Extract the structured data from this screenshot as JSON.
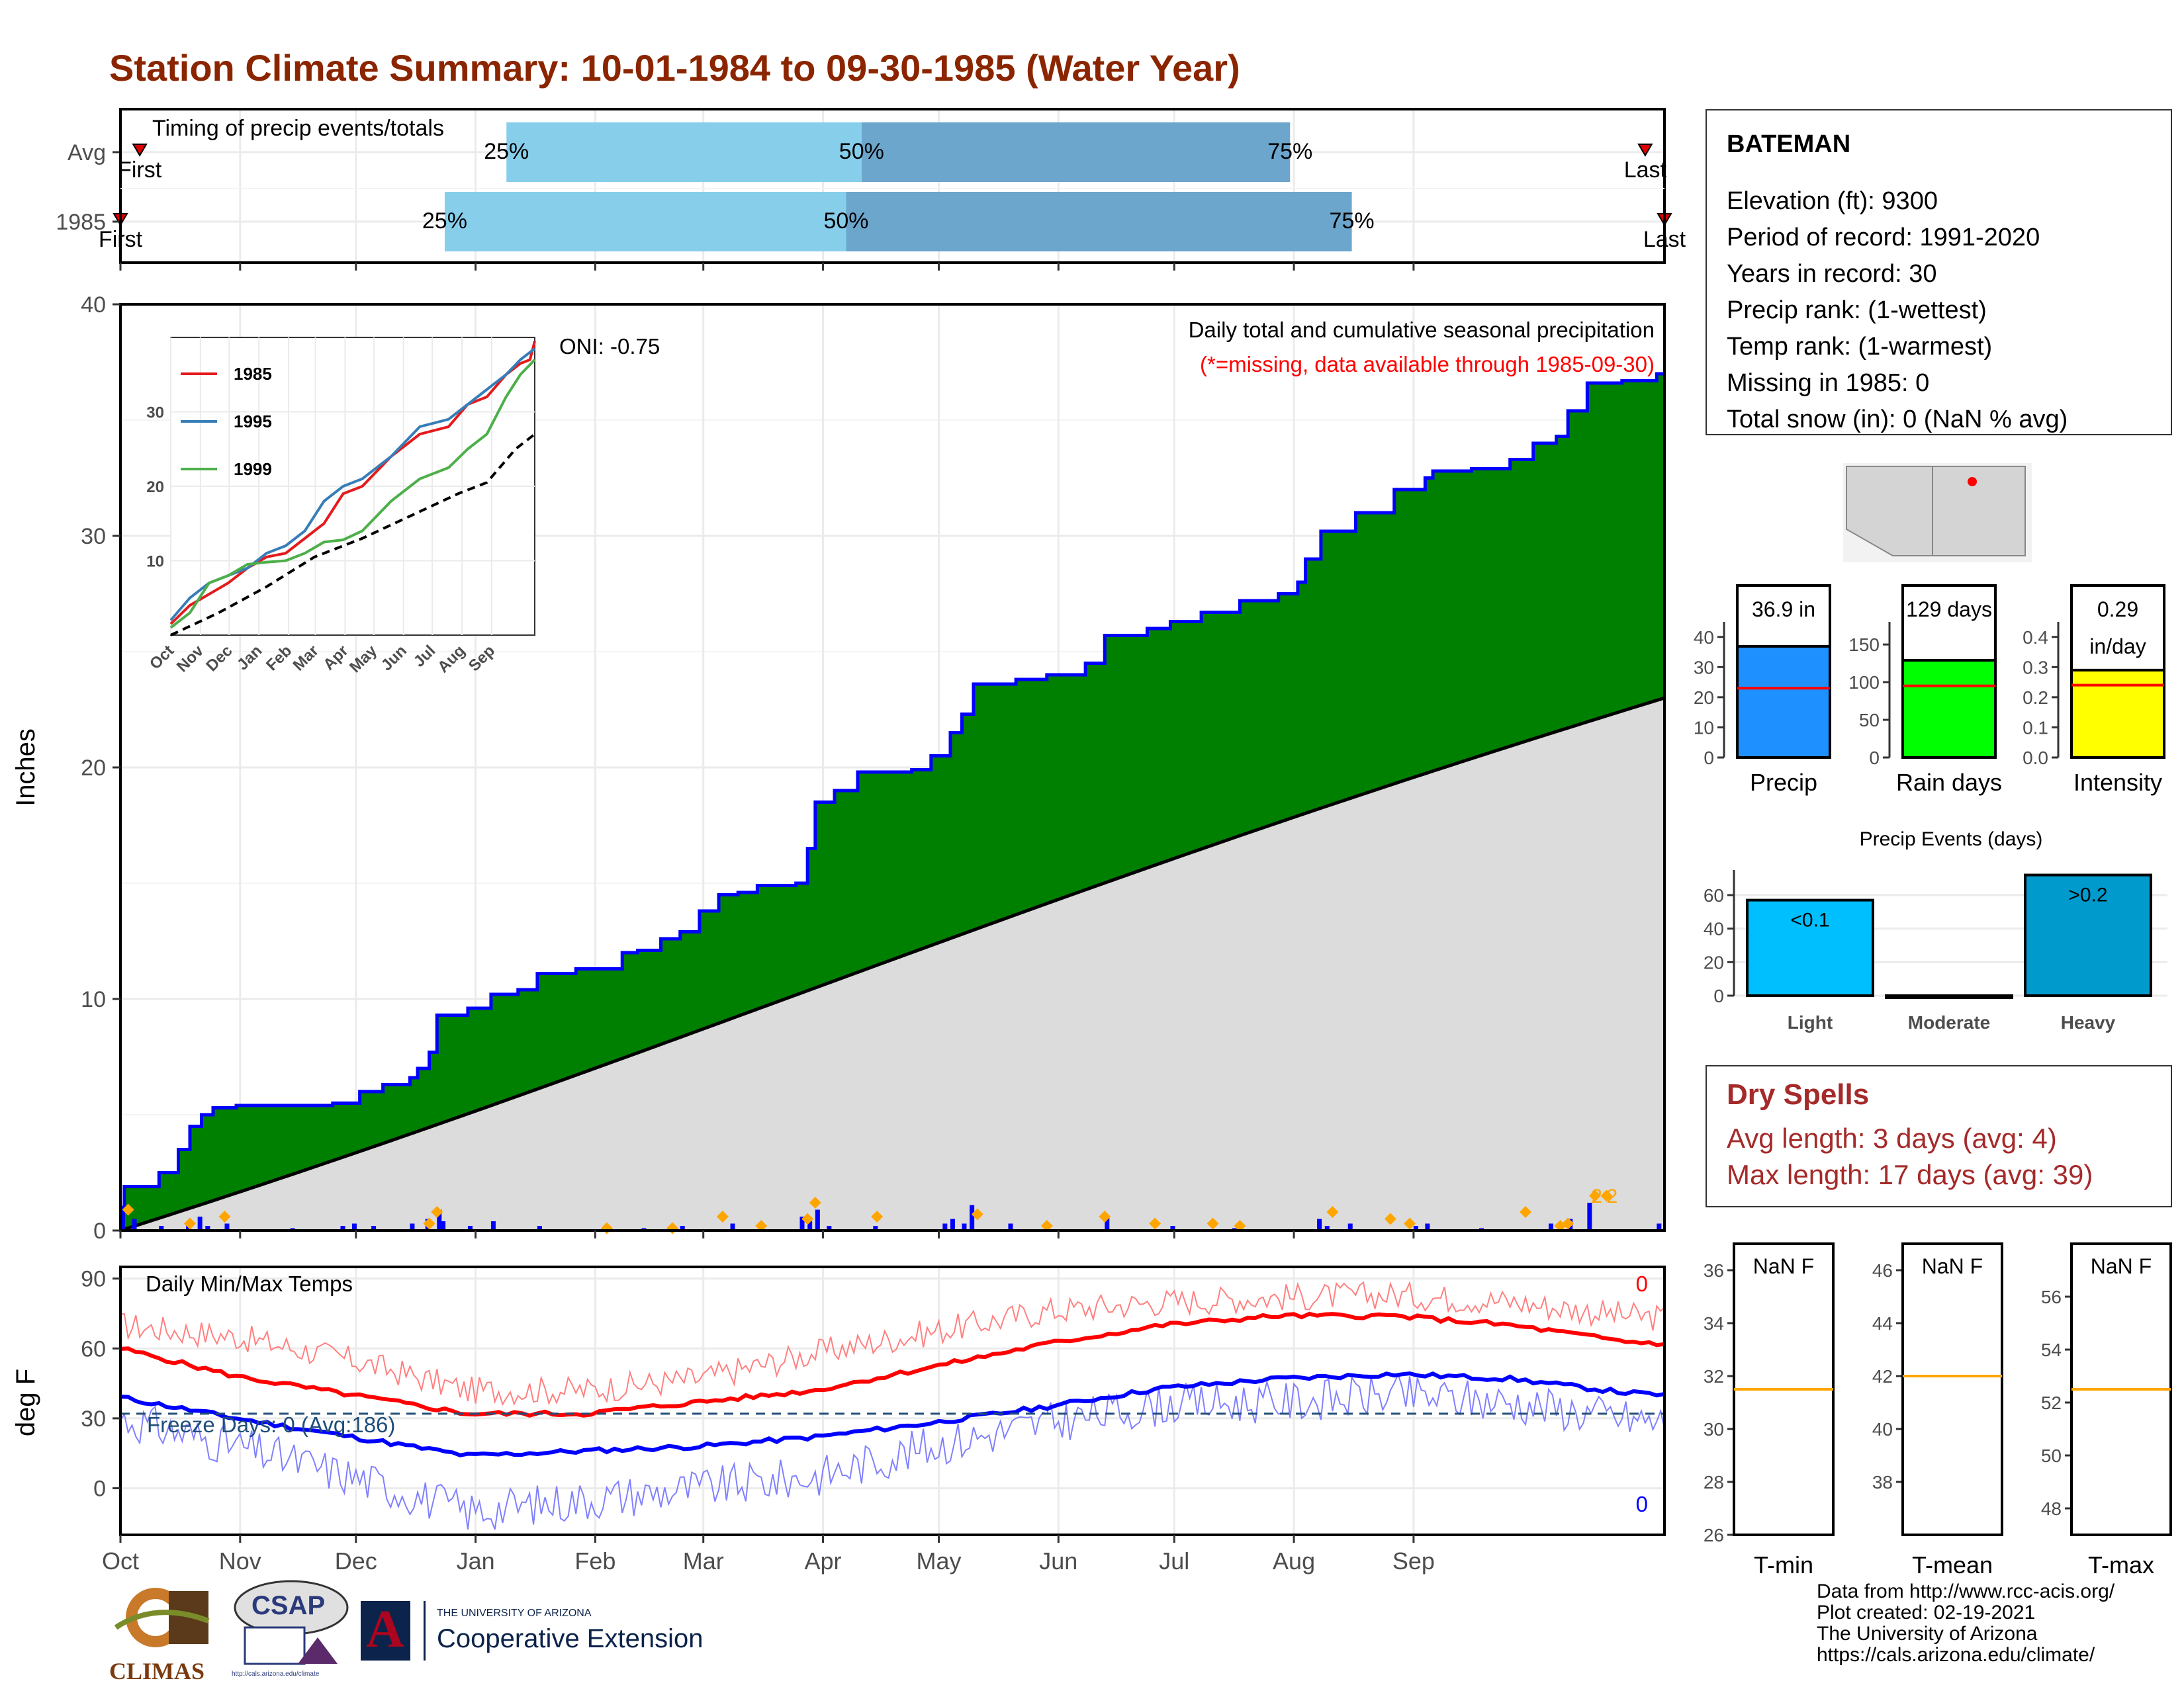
{
  "title": "Station Climate Summary: 10-01-1984 to 09-30-1985 (Water Year)",
  "station": {
    "name": "BATEMAN",
    "lines": [
      "Elevation (ft): 9300",
      "Period of record: 1991-2020",
      "Years in record: 30",
      "Precip rank:  (1-wettest)",
      "Temp rank:  (1-warmest)",
      "Missing in 1985: 0",
      "Total snow (in): 0 (NaN % avg)"
    ]
  },
  "dry_spells": {
    "title": "Dry Spells",
    "avg": "Avg length: 3 days (avg: 4)",
    "max": "Max length: 17 days (avg: 39)"
  },
  "footer": {
    "lines": [
      "Data from http://www.rcc-acis.org/",
      "Plot created: 02-19-2021",
      "The University of Arizona",
      "https://cals.arizona.edu/climate/"
    ],
    "logos": {
      "climas": "CLIMAS",
      "csap": "CSAP",
      "csap_url": "http://cals.arizona.edu/climate",
      "ua_small": "THE UNIVERSITY OF ARIZONA",
      "ua_big": "Cooperative Extension",
      "ua_letter": "A"
    }
  },
  "colors": {
    "title": "#8b2500",
    "cum_fill": "#008000",
    "cum_line": "#0000ff",
    "avg_fill": "#dcdcdc",
    "bar_light_blue": "#87ceeb",
    "bar_dark_blue": "#6ca6cd",
    "tmax": "#ff0000",
    "tmin": "#0000ff",
    "orange": "#ffa500",
    "precip_bar": "#1e90ff",
    "rain_bar": "#00ff00",
    "intensity_bar": "#ffff00",
    "light_bar": "#00bfff",
    "heavy_bar": "#009acd"
  },
  "months": [
    "Oct",
    "Nov",
    "Dec",
    "Jan",
    "Feb",
    "Mar",
    "Apr",
    "May",
    "Jun",
    "Jul",
    "Aug",
    "Sep"
  ],
  "timing": {
    "title": "Timing of precip events/totals",
    "rows": [
      {
        "label": "Avg",
        "first": "First",
        "last": "Last",
        "p25": "25%",
        "p50": "50%",
        "p75": "75%",
        "first_day": 5,
        "p25_day": 100,
        "p50_day": 192,
        "p75_day": 303,
        "last_day": 395
      },
      {
        "label": "1985",
        "first": "First",
        "last": "Last",
        "p25": "25%",
        "p50": "50%",
        "p75": "75%",
        "first_day": 0,
        "p25_day": 84,
        "p50_day": 188,
        "p75_day": 319,
        "last_day": 400
      }
    ]
  },
  "chart_data": {
    "type": "area",
    "title": "Daily total and cumulative seasonal precipitation",
    "subtitle": "(*=missing, data available through 1985-09-30)",
    "ylabel": "Inches",
    "ylim": [
      0,
      40
    ],
    "yticks": [
      0,
      10,
      20,
      30,
      40
    ],
    "oni": "ONI: -0.75",
    "bar_label": "2",
    "cumulative_1985": [
      [
        1,
        1.9
      ],
      [
        10,
        2.5
      ],
      [
        15,
        3.5
      ],
      [
        18,
        4.5
      ],
      [
        21,
        5.0
      ],
      [
        24,
        5.3
      ],
      [
        30,
        5.4
      ],
      [
        55,
        5.5
      ],
      [
        62,
        6.0
      ],
      [
        68,
        6.3
      ],
      [
        75,
        6.6
      ],
      [
        77,
        7.0
      ],
      [
        80,
        7.7
      ],
      [
        82,
        9.3
      ],
      [
        90,
        9.6
      ],
      [
        96,
        10.2
      ],
      [
        103,
        10.4
      ],
      [
        108,
        11.1
      ],
      [
        118,
        11.3
      ],
      [
        130,
        12.0
      ],
      [
        134,
        12.1
      ],
      [
        140,
        12.6
      ],
      [
        145,
        12.9
      ],
      [
        150,
        13.8
      ],
      [
        155,
        14.5
      ],
      [
        160,
        14.6
      ],
      [
        165,
        14.9
      ],
      [
        175,
        15.0
      ],
      [
        178,
        16.5
      ],
      [
        180,
        18.5
      ],
      [
        185,
        19.0
      ],
      [
        191,
        19.8
      ],
      [
        205,
        19.9
      ],
      [
        210,
        20.5
      ],
      [
        215,
        21.5
      ],
      [
        218,
        22.3
      ],
      [
        221,
        23.6
      ],
      [
        232,
        23.8
      ],
      [
        240,
        24.0
      ],
      [
        250,
        24.5
      ],
      [
        255,
        25.7
      ],
      [
        266,
        26.0
      ],
      [
        272,
        26.3
      ],
      [
        280,
        26.7
      ],
      [
        290,
        27.2
      ],
      [
        300,
        27.5
      ],
      [
        305,
        28.0
      ],
      [
        307,
        29.0
      ],
      [
        311,
        30.2
      ],
      [
        320,
        31.0
      ],
      [
        330,
        32.0
      ],
      [
        338,
        32.5
      ],
      [
        340,
        32.8
      ],
      [
        350,
        32.9
      ],
      [
        360,
        33.3
      ],
      [
        366,
        34.0
      ],
      [
        372,
        34.3
      ],
      [
        375,
        35.4
      ],
      [
        380,
        36.6
      ],
      [
        389,
        36.7
      ],
      [
        398,
        37.0
      ]
    ],
    "average_end": 23.0,
    "daily_bars": [
      [
        0,
        0.9
      ],
      [
        3,
        0.5
      ],
      [
        10,
        0.2
      ],
      [
        17,
        0.3
      ],
      [
        20,
        0.6
      ],
      [
        22,
        0.2
      ],
      [
        27,
        0.3
      ],
      [
        44,
        0.1
      ],
      [
        57,
        0.2
      ],
      [
        60,
        0.3
      ],
      [
        65,
        0.2
      ],
      [
        75,
        0.3
      ],
      [
        79,
        0.5
      ],
      [
        82,
        0.9
      ],
      [
        83,
        0.4
      ],
      [
        90,
        0.2
      ],
      [
        96,
        0.4
      ],
      [
        108,
        0.2
      ],
      [
        126,
        0.1
      ],
      [
        135,
        0.1
      ],
      [
        145,
        0.2
      ],
      [
        158,
        0.3
      ],
      [
        176,
        0.6
      ],
      [
        178,
        0.4
      ],
      [
        180,
        0.9
      ],
      [
        183,
        0.2
      ],
      [
        195,
        0.2
      ],
      [
        213,
        0.3
      ],
      [
        215,
        0.5
      ],
      [
        218,
        0.3
      ],
      [
        220,
        1.1
      ],
      [
        230,
        0.3
      ],
      [
        255,
        0.6
      ],
      [
        272,
        0.2
      ],
      [
        288,
        0.1
      ],
      [
        310,
        0.5
      ],
      [
        312,
        0.2
      ],
      [
        318,
        0.3
      ],
      [
        335,
        0.2
      ],
      [
        338,
        0.3
      ],
      [
        352,
        0.1
      ],
      [
        370,
        0.3
      ],
      [
        375,
        0.5
      ],
      [
        380,
        1.2
      ],
      [
        398,
        0.3
      ]
    ],
    "missing_markers": [
      [
        2,
        0.9
      ],
      [
        18,
        0.3
      ],
      [
        27,
        0.6
      ],
      [
        80,
        0.3
      ],
      [
        82,
        0.8
      ],
      [
        126,
        0.1
      ],
      [
        143,
        0.1
      ],
      [
        156,
        0.6
      ],
      [
        166,
        0.2
      ],
      [
        178,
        0.5
      ],
      [
        180,
        1.2
      ],
      [
        196,
        0.6
      ],
      [
        222,
        0.7
      ],
      [
        240,
        0.2
      ],
      [
        255,
        0.6
      ],
      [
        268,
        0.3
      ],
      [
        283,
        0.3
      ],
      [
        290,
        0.2
      ],
      [
        314,
        0.8
      ],
      [
        329,
        0.5
      ],
      [
        334,
        0.3
      ],
      [
        364,
        0.8
      ],
      [
        373,
        0.2
      ],
      [
        375,
        0.3
      ],
      [
        382,
        1.5
      ],
      [
        385,
        1.5
      ]
    ],
    "inset": {
      "months": [
        "Oct",
        "Nov",
        "Dec",
        "Jan",
        "Feb",
        "Mar",
        "Apr",
        "May",
        "Jun",
        "Jul",
        "Aug",
        "Sep"
      ],
      "yticks": [
        10,
        20,
        30
      ],
      "ylim": [
        0,
        40
      ],
      "series": [
        {
          "name": "1985",
          "color": "#e41a1c",
          "points": [
            [
              0,
              1.5
            ],
            [
              20,
              4
            ],
            [
              40,
              5.5
            ],
            [
              60,
              7
            ],
            [
              80,
              9
            ],
            [
              100,
              10.5
            ],
            [
              120,
              11
            ],
            [
              140,
              13
            ],
            [
              160,
              15
            ],
            [
              180,
              19
            ],
            [
              200,
              20
            ],
            [
              230,
              24
            ],
            [
              260,
              27
            ],
            [
              290,
              28
            ],
            [
              310,
              31
            ],
            [
              330,
              32
            ],
            [
              350,
              35
            ],
            [
              365,
              36.5
            ],
            [
              375,
              37
            ],
            [
              380,
              39.5
            ]
          ]
        },
        {
          "name": "1995",
          "color": "#377eb8",
          "points": [
            [
              0,
              2
            ],
            [
              20,
              5
            ],
            [
              40,
              7
            ],
            [
              60,
              8
            ],
            [
              80,
              9
            ],
            [
              100,
              11
            ],
            [
              120,
              12
            ],
            [
              140,
              14
            ],
            [
              160,
              18
            ],
            [
              180,
              20
            ],
            [
              200,
              21
            ],
            [
              230,
              24
            ],
            [
              260,
              28
            ],
            [
              290,
              29
            ],
            [
              310,
              31
            ],
            [
              330,
              33
            ],
            [
              350,
              35
            ],
            [
              365,
              37
            ],
            [
              380,
              38.5
            ]
          ]
        },
        {
          "name": "1999",
          "color": "#4daf4a",
          "points": [
            [
              0,
              1
            ],
            [
              20,
              3
            ],
            [
              40,
              7
            ],
            [
              60,
              8
            ],
            [
              80,
              9.5
            ],
            [
              100,
              9.8
            ],
            [
              120,
              10
            ],
            [
              140,
              11
            ],
            [
              160,
              12.5
            ],
            [
              180,
              12.8
            ],
            [
              200,
              14
            ],
            [
              230,
              18
            ],
            [
              260,
              21
            ],
            [
              290,
              22.5
            ],
            [
              310,
              25
            ],
            [
              330,
              27
            ],
            [
              350,
              32
            ],
            [
              365,
              35
            ],
            [
              380,
              37
            ]
          ]
        }
      ],
      "average": [
        [
          0,
          0
        ],
        [
          50,
          3
        ],
        [
          100,
          6.5
        ],
        [
          150,
          10.5
        ],
        [
          200,
          13
        ],
        [
          250,
          16
        ],
        [
          300,
          19
        ],
        [
          330,
          20.5
        ],
        [
          360,
          25
        ],
        [
          380,
          27
        ]
      ]
    },
    "bars": {
      "precip": {
        "label": "Precip",
        "value": 36.9,
        "text": "36.9 in",
        "avg": 23,
        "ylim": [
          0,
          45
        ],
        "yticks": [
          0,
          10,
          20,
          30,
          40
        ]
      },
      "rain": {
        "label": "Rain days",
        "value": 129,
        "text": "129 days",
        "avg": 95,
        "ylim": [
          0,
          180
        ],
        "yticks": [
          0,
          50,
          100,
          150
        ]
      },
      "intensity": {
        "label": "Intensity",
        "value": 0.29,
        "text": "0.29",
        "text2": "in/day",
        "avg": 0.24,
        "ylim": [
          0,
          0.45
        ],
        "yticks": [
          "0.0",
          "0.1",
          "0.2",
          "0.3",
          "0.4"
        ]
      }
    },
    "events": {
      "title": "Precip Events (days)",
      "categories": [
        "Light",
        "Moderate",
        "Heavy"
      ],
      "values": [
        57,
        0,
        72
      ],
      "labels": [
        "<0.1",
        "",
        ">0.2"
      ],
      "ylim": [
        0,
        75
      ],
      "yticks": [
        0,
        20,
        40,
        60
      ]
    },
    "temps": {
      "label": "Daily Min/Max Temps",
      "ylabel": "deg F",
      "ylim": [
        -20,
        95
      ],
      "yticks": [
        0,
        30,
        60,
        90
      ],
      "freeze_text": "Freeze Days: 0 (Avg:186)",
      "freeze_line": 32,
      "count_max": "0",
      "count_min": "0",
      "avg_tmax": [
        [
          0,
          60
        ],
        [
          30,
          48
        ],
        [
          60,
          40
        ],
        [
          90,
          32
        ],
        [
          120,
          32
        ],
        [
          150,
          37
        ],
        [
          180,
          42
        ],
        [
          210,
          52
        ],
        [
          240,
          62
        ],
        [
          270,
          70
        ],
        [
          300,
          74
        ],
        [
          330,
          74
        ],
        [
          360,
          70
        ],
        [
          390,
          63
        ],
        [
          400,
          62
        ]
      ],
      "avg_tmin": [
        [
          0,
          39
        ],
        [
          30,
          30
        ],
        [
          60,
          22
        ],
        [
          90,
          14
        ],
        [
          120,
          16
        ],
        [
          150,
          18
        ],
        [
          180,
          22
        ],
        [
          210,
          28
        ],
        [
          240,
          35
        ],
        [
          270,
          43
        ],
        [
          300,
          47
        ],
        [
          330,
          49
        ],
        [
          360,
          47
        ],
        [
          390,
          41
        ],
        [
          400,
          40
        ]
      ],
      "obs_tmax": [
        [
          0,
          70
        ],
        [
          30,
          65
        ],
        [
          60,
          55
        ],
        [
          90,
          42
        ],
        [
          120,
          42
        ],
        [
          150,
          47
        ],
        [
          180,
          58
        ],
        [
          210,
          67
        ],
        [
          240,
          76
        ],
        [
          270,
          80
        ],
        [
          300,
          82
        ],
        [
          330,
          83
        ],
        [
          360,
          80
        ],
        [
          390,
          74
        ],
        [
          400,
          73
        ]
      ],
      "obs_tmin": [
        [
          0,
          30
        ],
        [
          30,
          18
        ],
        [
          60,
          5
        ],
        [
          90,
          -10
        ],
        [
          120,
          -5
        ],
        [
          150,
          0
        ],
        [
          180,
          5
        ],
        [
          210,
          18
        ],
        [
          240,
          28
        ],
        [
          270,
          36
        ],
        [
          300,
          37
        ],
        [
          330,
          40
        ],
        [
          360,
          37
        ],
        [
          390,
          30
        ],
        [
          400,
          28
        ]
      ]
    },
    "temp_boxes": [
      {
        "label": "T-min",
        "text": "NaN F",
        "line": 31.5,
        "ylim": [
          26,
          37
        ],
        "yticks": [
          26,
          28,
          30,
          32,
          34,
          36
        ]
      },
      {
        "label": "T-mean",
        "text": "NaN F",
        "line": 42,
        "ylim": [
          36,
          47
        ],
        "yticks": [
          38,
          40,
          42,
          44,
          46
        ]
      },
      {
        "label": "T-max",
        "text": "NaN F",
        "line": 52.5,
        "ylim": [
          47,
          58
        ],
        "yticks": [
          48,
          50,
          52,
          54,
          56
        ]
      }
    ]
  }
}
